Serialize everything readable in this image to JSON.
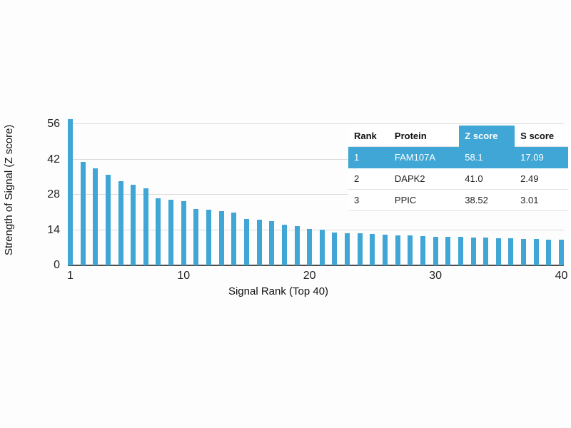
{
  "chart_data": {
    "type": "bar",
    "title": "",
    "xlabel": "Signal Rank (Top 40)",
    "ylabel": "Strength of Signal (Z score)",
    "ylim": [
      0,
      60
    ],
    "yticks": [
      0,
      14,
      28,
      42,
      56
    ],
    "xticks": [
      1,
      10,
      20,
      30,
      40
    ],
    "bar_color": "#3fa6d5",
    "grid": "horizontal",
    "values": [
      58.1,
      41.0,
      38.52,
      36.0,
      33.5,
      32.0,
      30.5,
      26.5,
      26.0,
      25.5,
      22.5,
      22.0,
      21.5,
      21.0,
      18.5,
      18.0,
      17.5,
      16.0,
      15.5,
      14.5,
      14.2,
      13.0,
      12.8,
      12.6,
      12.4,
      12.2,
      12.0,
      11.8,
      11.6,
      11.4,
      11.3,
      11.2,
      11.1,
      11.0,
      10.8,
      10.7,
      10.6,
      10.5,
      10.3,
      10.2
    ]
  },
  "table": {
    "columns": [
      "Rank",
      "Protein",
      "Z score",
      "S score"
    ],
    "highlight_header_col": "Z score",
    "highlight_color": "#3fa6d5",
    "rows": [
      {
        "cells": [
          "1",
          "FAM107A",
          "58.1",
          "17.09"
        ],
        "highlight": true
      },
      {
        "cells": [
          "2",
          "DAPK2",
          "41.0",
          "2.49"
        ],
        "highlight": false
      },
      {
        "cells": [
          "3",
          "PPIC",
          "38.52",
          "3.01"
        ],
        "highlight": false
      }
    ]
  }
}
